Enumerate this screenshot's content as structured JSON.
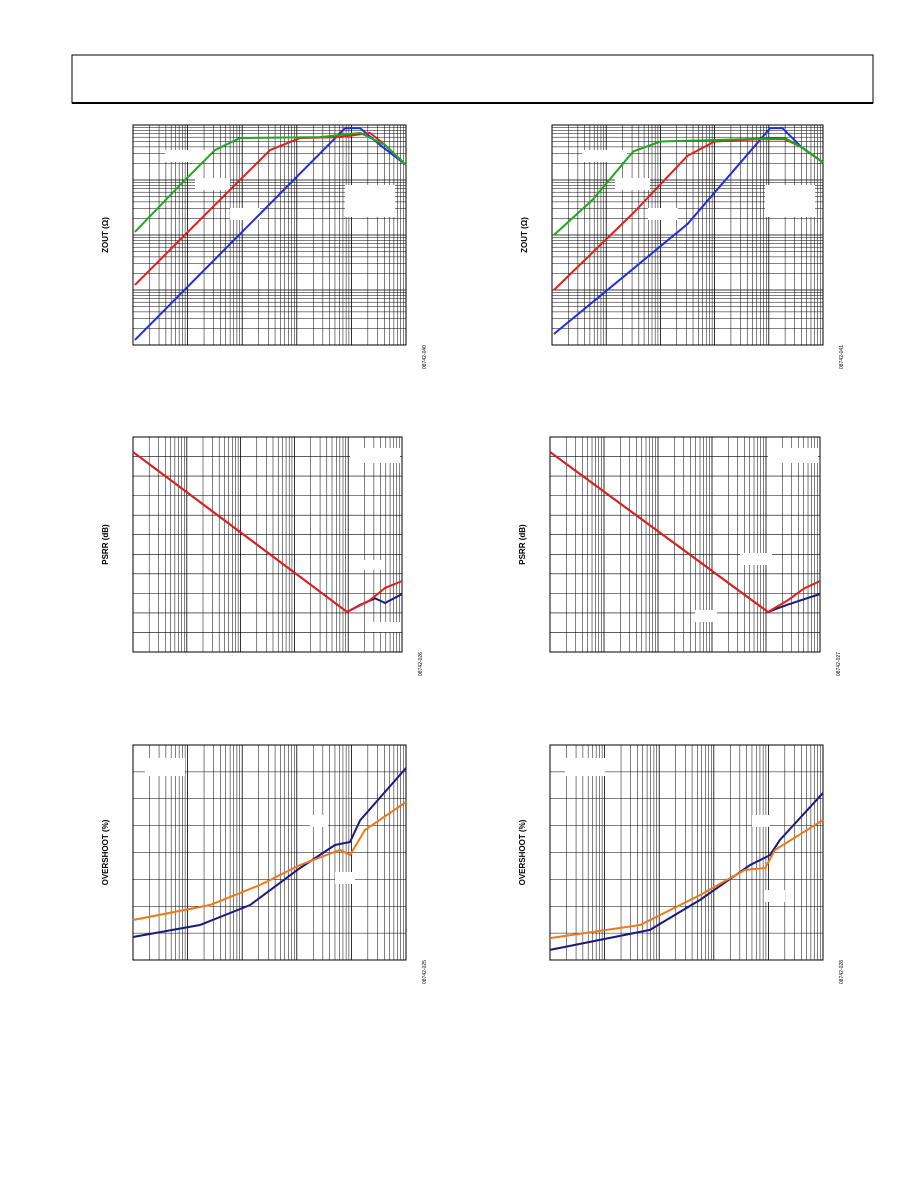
{
  "chart_data": [
    {
      "type": "line",
      "y_label": "ZOUT (Ω)",
      "figure_id": "08742-040",
      "x_scale": "log",
      "y_scale": "log",
      "grid": true,
      "xlim": [
        0,
        100
      ],
      "ylim": [
        0,
        100
      ],
      "series": [
        {
          "color": "#1f2fe0",
          "x": [
            0.7,
            77.7,
            83.2,
            90.5,
            100
          ],
          "values": [
            2.3,
            98.6,
            98.6,
            90.9,
            81.8
          ]
        },
        {
          "color": "#e0201b",
          "x": [
            0.7,
            35.5,
            50.2,
            61.2,
            75.8,
            86.8,
            92.3,
            100
          ],
          "values": [
            27.3,
            70.5,
            88.6,
            94.1,
            94.5,
            96.4,
            90.9,
            81.8
          ]
        },
        {
          "color": "#1fa81f",
          "x": [
            0.7,
            17.2,
            30,
            39.2,
            68.5,
            83.2,
            92.3,
            100
          ],
          "values": [
            51.4,
            72.7,
            88.6,
            94.1,
            94.5,
            96.4,
            90.9,
            81.8
          ]
        }
      ]
    },
    {
      "type": "line",
      "y_label": "ZOUT (Ω)",
      "figure_id": "08742-041",
      "x_scale": "log",
      "y_scale": "log",
      "grid": true,
      "xlim": [
        0,
        100
      ],
      "ylim": [
        0,
        100
      ],
      "series": [
        {
          "color": "#1f2fe0",
          "x": [
            0.7,
            50,
            80.5,
            85,
            92,
            100
          ],
          "values": [
            5,
            55,
            98.6,
            98.6,
            90,
            83
          ]
        },
        {
          "color": "#e0201b",
          "x": [
            0.7,
            30,
            50,
            60,
            76,
            86,
            92,
            100
          ],
          "values": [
            25,
            60,
            86,
            92.5,
            93.5,
            93.5,
            90,
            83
          ]
        },
        {
          "color": "#1fa81f",
          "x": [
            0.7,
            15,
            30,
            40,
            70,
            86,
            92,
            100
          ],
          "values": [
            50,
            66,
            88,
            92.5,
            93.5,
            94,
            90,
            83
          ]
        }
      ]
    },
    {
      "type": "line",
      "y_label": "PSRR (dB)",
      "figure_id": "08742-026",
      "x_scale": "log",
      "y_scale": "linear",
      "grid": true,
      "xlim": [
        0,
        100
      ],
      "ylim": [
        0,
        100
      ],
      "series": [
        {
          "color": "#1a1a80",
          "x": [
            0,
            79.6,
            84.4,
            90,
            93.7,
            100
          ],
          "values": [
            93,
            18.6,
            21.9,
            25,
            22.8,
            27
          ]
        },
        {
          "color": "#e0201b",
          "x": [
            0,
            79.6,
            88,
            93.7,
            100
          ],
          "values": [
            93,
            18.6,
            24,
            29.8,
            33
          ]
        }
      ]
    },
    {
      "type": "line",
      "y_label": "PSRR (dB)",
      "figure_id": "08742-027",
      "x_scale": "log",
      "y_scale": "linear",
      "grid": true,
      "xlim": [
        0,
        100
      ],
      "ylim": [
        0,
        100
      ],
      "series": [
        {
          "color": "#1a1a80",
          "x": [
            0,
            80.7,
            88,
            94,
            100
          ],
          "values": [
            93,
            18.6,
            22,
            24.5,
            27
          ]
        },
        {
          "color": "#e0201b",
          "x": [
            0,
            80.7,
            88,
            94,
            100
          ],
          "values": [
            93,
            18.6,
            24,
            29.5,
            33
          ]
        }
      ]
    },
    {
      "type": "line",
      "y_label": "OVERSHOOT (%)",
      "figure_id": "08742-025",
      "x_scale": "log",
      "y_scale": "linear",
      "grid": true,
      "xlim": [
        0,
        100
      ],
      "ylim": [
        0,
        100
      ],
      "series": [
        {
          "color": "#1a1a80",
          "x": [
            0,
            24.5,
            42.9,
            61.2,
            74,
            79.5,
            83.2,
            100
          ],
          "values": [
            10.7,
            16.3,
            25.6,
            42.8,
            53.5,
            54.9,
            65,
            89.3
          ]
        },
        {
          "color": "#f07818",
          "x": [
            0,
            28.2,
            46.5,
            61.2,
            75.8,
            79.5,
            85,
            100
          ],
          "values": [
            18.6,
            25.6,
            34.9,
            44.2,
            51.2,
            48.8,
            60.5,
            73.5
          ]
        }
      ]
    },
    {
      "type": "line",
      "y_label": "OVERSHOOT (%)",
      "figure_id": "08742-028",
      "x_scale": "log",
      "y_scale": "linear",
      "grid": true,
      "xlim": [
        0,
        100
      ],
      "ylim": [
        0,
        100
      ],
      "series": [
        {
          "color": "#1a1a80",
          "x": [
            0,
            36.6,
            54.9,
            73.3,
            80.6,
            84.2,
            100
          ],
          "values": [
            4.7,
            14,
            27.9,
            44.2,
            48.8,
            55.8,
            77.7
          ]
        },
        {
          "color": "#f07818",
          "x": [
            0,
            33,
            54.9,
            71.4,
            78.8,
            82.4,
            100
          ],
          "values": [
            10.2,
            16.3,
            30.2,
            41.9,
            42.8,
            51.2,
            65.1
          ]
        }
      ]
    }
  ]
}
